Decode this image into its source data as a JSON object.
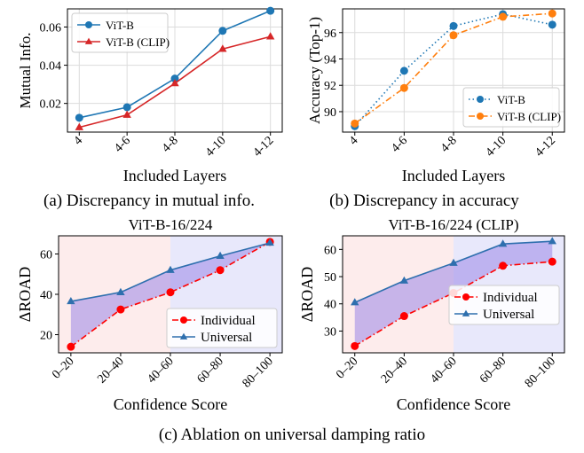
{
  "captions": {
    "a": "(a) Discrepancy in mutual info.",
    "b": "(b) Discrepancy in accuracy",
    "c": "(c) Ablation on universal damping ratio"
  },
  "colors": {
    "blue": "#1f77b4",
    "red": "#d62728",
    "orange": "#ff7f0e",
    "individual": "#ff0000",
    "universal": "#2e6fae",
    "fill_between": "#9a86e8",
    "bg_left": "#fdecec",
    "bg_right": "#e8e8fb"
  },
  "chart_data": [
    {
      "id": "a",
      "type": "line",
      "title": "",
      "xlabel": "Included Layers",
      "ylabel": "Mutual Info.",
      "categories": [
        "4",
        "4-6",
        "4-8",
        "4-10",
        "4-12"
      ],
      "ylim": [
        0.005,
        0.0695
      ],
      "yticks": [
        0.02,
        0.04,
        0.06
      ],
      "ytick_labels": [
        "0.02",
        "0.04",
        "0.06"
      ],
      "grid": true,
      "legend": "top-left",
      "series": [
        {
          "name": "ViT-B",
          "values": [
            0.0125,
            0.018,
            0.033,
            0.058,
            0.0685
          ],
          "color": "#1f77b4",
          "marker": "circle",
          "line": "solid"
        },
        {
          "name": "ViT-B (CLIP)",
          "values": [
            0.0075,
            0.014,
            0.0305,
            0.0485,
            0.055
          ],
          "color": "#d62728",
          "marker": "triangle",
          "line": "solid"
        }
      ]
    },
    {
      "id": "b",
      "type": "line",
      "title": "",
      "xlabel": "Included Layers",
      "ylabel": "Accuracy (Top-1)",
      "categories": [
        "4",
        "4-6",
        "4-8",
        "4-10",
        "4-12"
      ],
      "ylim": [
        88.45,
        97.8
      ],
      "yticks": [
        90,
        92,
        94,
        96
      ],
      "ytick_labels": [
        "90",
        "92",
        "94",
        "96"
      ],
      "grid": true,
      "legend": "bottom-right",
      "series": [
        {
          "name": "ViT-B",
          "values": [
            88.9,
            93.1,
            96.5,
            97.4,
            96.6
          ],
          "color": "#1f77b4",
          "marker": "circle",
          "line": "dotted"
        },
        {
          "name": "ViT-B (CLIP)",
          "values": [
            89.1,
            91.8,
            95.8,
            97.2,
            97.45
          ],
          "color": "#ff7f0e",
          "marker": "circle",
          "line": "dashdot"
        }
      ]
    },
    {
      "id": "c1",
      "type": "line",
      "title": "ViT-B-16/224",
      "xlabel": "Confidence Score",
      "ylabel": "ΔROAD",
      "categories": [
        "0–20",
        "20–40",
        "40–60",
        "60–80",
        "80–100"
      ],
      "ylim": [
        11,
        69
      ],
      "yticks": [
        20,
        40,
        60
      ],
      "ytick_labels": [
        "20",
        "40",
        "60"
      ],
      "grid": false,
      "legend": "bottom-right",
      "series": [
        {
          "name": "Individual",
          "values": [
            14,
            32.5,
            41,
            52,
            66
          ],
          "color": "#ff0000",
          "marker": "circle",
          "line": "dashdot"
        },
        {
          "name": "Universal",
          "values": [
            36.5,
            41,
            52,
            59,
            65.5
          ],
          "color": "#2e6fae",
          "marker": "triangle",
          "line": "solid"
        }
      ]
    },
    {
      "id": "c2",
      "type": "line",
      "title": "ViT-B-16/224 (CLIP)",
      "xlabel": "Confidence Score",
      "ylabel": "ΔROAD",
      "categories": [
        "0–20",
        "20–40",
        "40–60",
        "60–80",
        "80–100"
      ],
      "ylim": [
        22,
        65
      ],
      "yticks": [
        30,
        40,
        50,
        60
      ],
      "ytick_labels": [
        "30",
        "40",
        "50",
        "60"
      ],
      "grid": false,
      "legend": "center-right",
      "series": [
        {
          "name": "Individual",
          "values": [
            24.5,
            35.5,
            44,
            54,
            55.5
          ],
          "color": "#ff0000",
          "marker": "circle",
          "line": "dashdot"
        },
        {
          "name": "Universal",
          "values": [
            40.5,
            48.5,
            55,
            62,
            63
          ],
          "color": "#2e6fae",
          "marker": "triangle",
          "line": "solid"
        }
      ]
    }
  ]
}
